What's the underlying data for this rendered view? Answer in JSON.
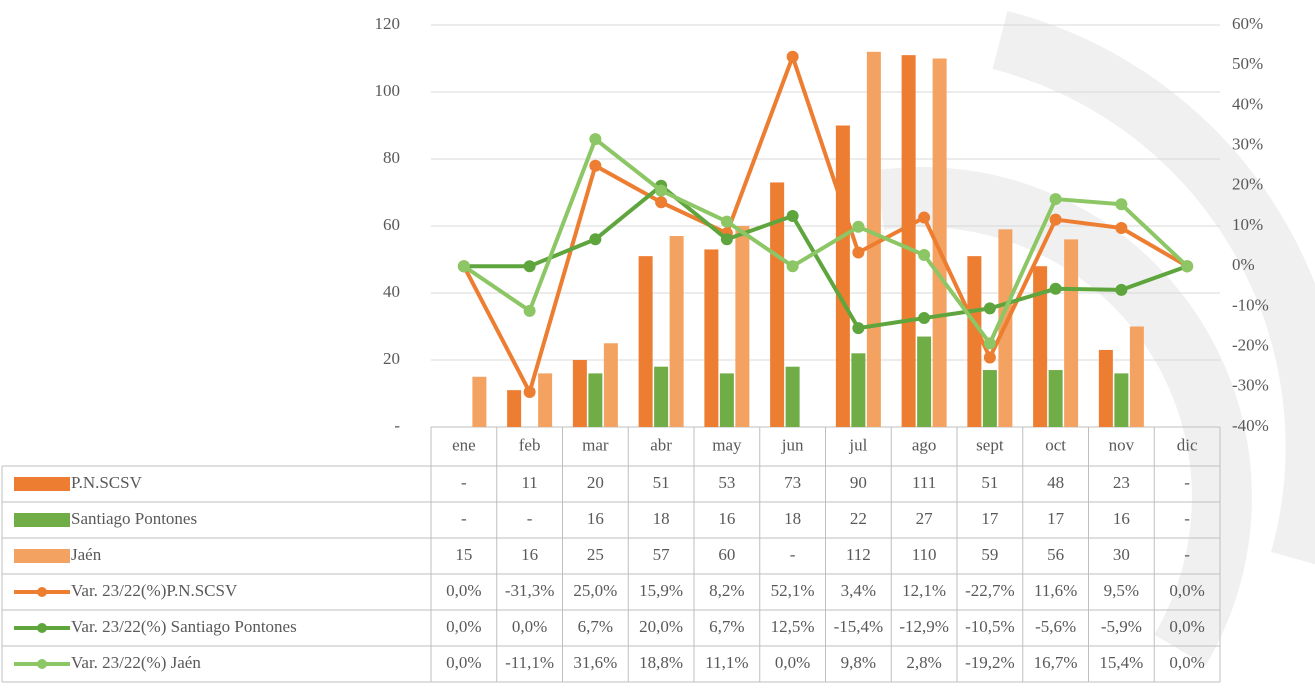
{
  "chart_data": {
    "type": "bar_line_table",
    "categories": [
      "ene",
      "feb",
      "mar",
      "abr",
      "may",
      "jun",
      "jul",
      "ago",
      "sept",
      "oct",
      "nov",
      "dic"
    ],
    "ylim": [
      0,
      120
    ],
    "yticks": [
      {
        "value": 0,
        "label": "-"
      },
      20,
      40,
      60,
      80,
      100,
      120
    ],
    "y2lim": [
      -40,
      60
    ],
    "y2ticks": [
      {
        "value": -40,
        "label": "-40%"
      },
      {
        "value": -30,
        "label": "-30%"
      },
      {
        "value": -20,
        "label": "-20%"
      },
      {
        "value": -10,
        "label": "-10%"
      },
      {
        "value": 0,
        "label": "0%"
      },
      {
        "value": 10,
        "label": "10%"
      },
      {
        "value": 20,
        "label": "20%"
      },
      {
        "value": 30,
        "label": "30%"
      },
      {
        "value": 40,
        "label": "40%"
      },
      {
        "value": 50,
        "label": "50%"
      },
      {
        "value": 60,
        "label": "60%"
      }
    ],
    "grid": true,
    "series": [
      {
        "name": "P.N.SCSV",
        "type": "bar",
        "color": "#ed7d31",
        "values": [
          null,
          11,
          20,
          51,
          53,
          73,
          90,
          111,
          51,
          48,
          23,
          null
        ],
        "value_labels": [
          "-",
          "11",
          "20",
          "51",
          "53",
          "73",
          "90",
          "111",
          "51",
          "48",
          "23",
          "-"
        ]
      },
      {
        "name": "Santiago Pontones",
        "type": "bar",
        "color": "#70ad47",
        "values": [
          null,
          null,
          16,
          18,
          16,
          18,
          22,
          27,
          17,
          17,
          16,
          null
        ],
        "value_labels": [
          "-",
          "-",
          "16",
          "18",
          "16",
          "18",
          "22",
          "27",
          "17",
          "17",
          "16",
          "-"
        ]
      },
      {
        "name": "Jaén",
        "type": "bar",
        "color": "#f4a261",
        "values": [
          15,
          16,
          25,
          57,
          60,
          null,
          112,
          110,
          59,
          56,
          30,
          null
        ],
        "value_labels": [
          "15",
          "16",
          "25",
          "57",
          "60",
          "-",
          "112",
          "110",
          "59",
          "56",
          "30",
          "-"
        ]
      },
      {
        "name": "Var. 23/22(%)P.N.SCSV",
        "type": "line",
        "axis": "y2",
        "color": "#ed7d31",
        "values": [
          0,
          -31.3,
          25,
          15.9,
          8.2,
          52.1,
          3.4,
          12.1,
          -22.7,
          11.6,
          9.5,
          0
        ],
        "value_labels": [
          "0,0%",
          "-31,3%",
          "25,0%",
          "15,9%",
          "8,2%",
          "52,1%",
          "3,4%",
          "12,1%",
          "-22,7%",
          "11,6%",
          "9,5%",
          "0,0%"
        ]
      },
      {
        "name": "Var. 23/22(%) Santiago Pontones",
        "type": "line",
        "axis": "y2",
        "color": "#5fa53d",
        "values": [
          0,
          0,
          6.7,
          20,
          6.7,
          12.5,
          -15.4,
          -12.9,
          -10.5,
          -5.6,
          -5.9,
          0
        ],
        "value_labels": [
          "0,0%",
          "0,0%",
          "6,7%",
          "20,0%",
          "6,7%",
          "12,5%",
          "-15,4%",
          "-12,9%",
          "-10,5%",
          "-5,6%",
          "-5,9%",
          "0,0%"
        ]
      },
      {
        "name": "Var. 23/22(%) Jaén",
        "type": "line",
        "axis": "y2",
        "color": "#8cc665",
        "values": [
          0,
          -11.1,
          31.6,
          18.8,
          11.1,
          0,
          9.8,
          2.8,
          -19.2,
          16.7,
          15.4,
          0
        ],
        "value_labels": [
          "0,0%",
          "-11,1%",
          "31,6%",
          "18,8%",
          "11,1%",
          "0,0%",
          "9,8%",
          "2,8%",
          "-19,2%",
          "16,7%",
          "15,4%",
          "0,0%"
        ]
      }
    ]
  }
}
